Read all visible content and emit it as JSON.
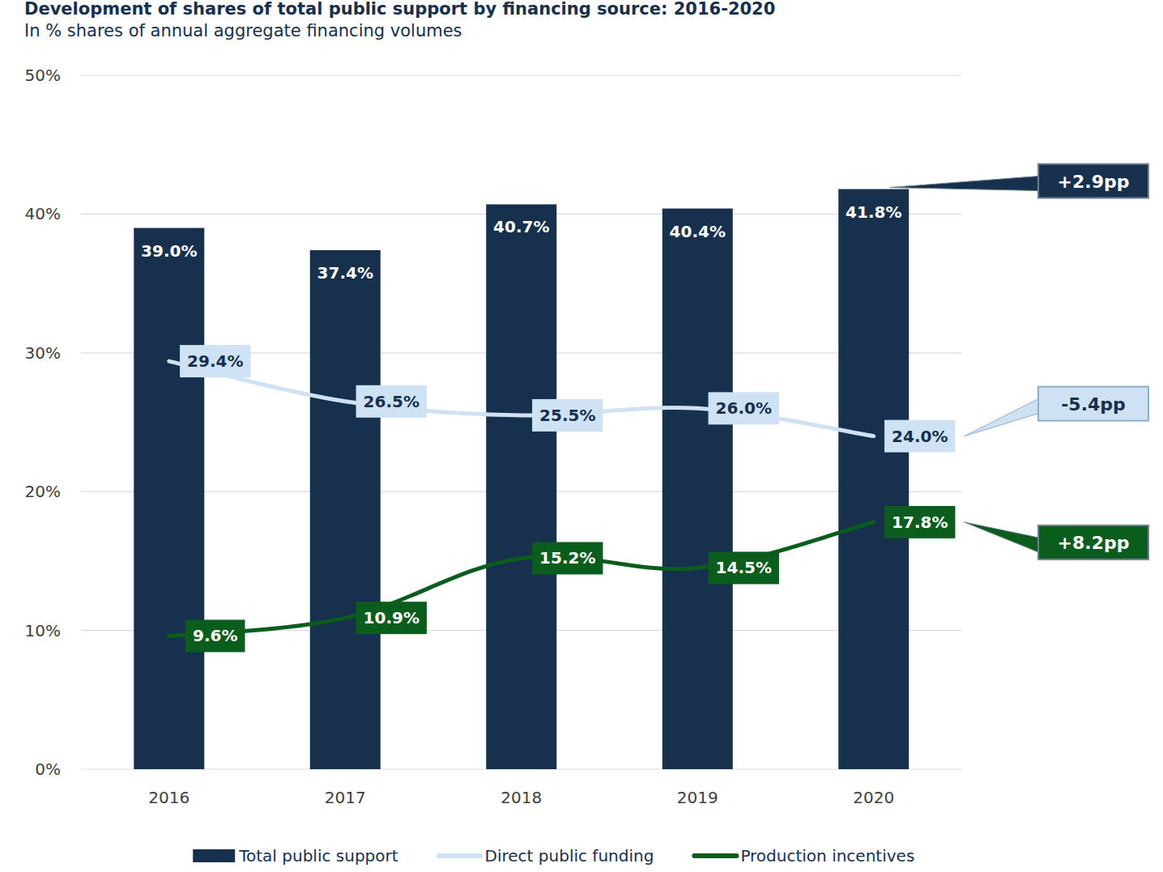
{
  "chart_data": {
    "type": "bar",
    "title": "Development of shares of total public support by financing source: 2016-2020",
    "subtitle": "In % shares of annual aggregate financing volumes",
    "categories": [
      "2016",
      "2017",
      "2018",
      "2019",
      "2020"
    ],
    "series": [
      {
        "name": "Total public support",
        "type": "bar",
        "color": "#17304d",
        "values": [
          39.0,
          37.4,
          40.7,
          40.4,
          41.8
        ],
        "value_labels": [
          "39.0%",
          "37.4%",
          "40.7%",
          "40.4%",
          "41.8%"
        ]
      },
      {
        "name": "Direct public funding",
        "type": "line",
        "color": "#cfe2f4",
        "values": [
          29.4,
          26.5,
          25.5,
          26.0,
          24.0
        ],
        "value_labels": [
          "29.4%",
          "26.5%",
          "25.5%",
          "26.0%",
          "24.0%"
        ]
      },
      {
        "name": "Production incentives",
        "type": "line",
        "color": "#0b5d1e",
        "values": [
          9.6,
          10.9,
          15.2,
          14.5,
          17.8
        ],
        "value_labels": [
          "9.6%",
          "10.9%",
          "15.2%",
          "14.5%",
          "17.8%"
        ]
      }
    ],
    "annotations": [
      "+2.9pp",
      "-5.4pp",
      "+8.2pp"
    ],
    "ylim": [
      0,
      50
    ],
    "yticks": [
      {
        "value": 0,
        "label": "0%"
      },
      {
        "value": 10,
        "label": "10%"
      },
      {
        "value": 20,
        "label": "20%"
      },
      {
        "value": 30,
        "label": "30%"
      },
      {
        "value": 40,
        "label": "40%"
      },
      {
        "value": 50,
        "label": "50%"
      }
    ],
    "grid": true,
    "legend": "bottom",
    "data_labels": true
  }
}
